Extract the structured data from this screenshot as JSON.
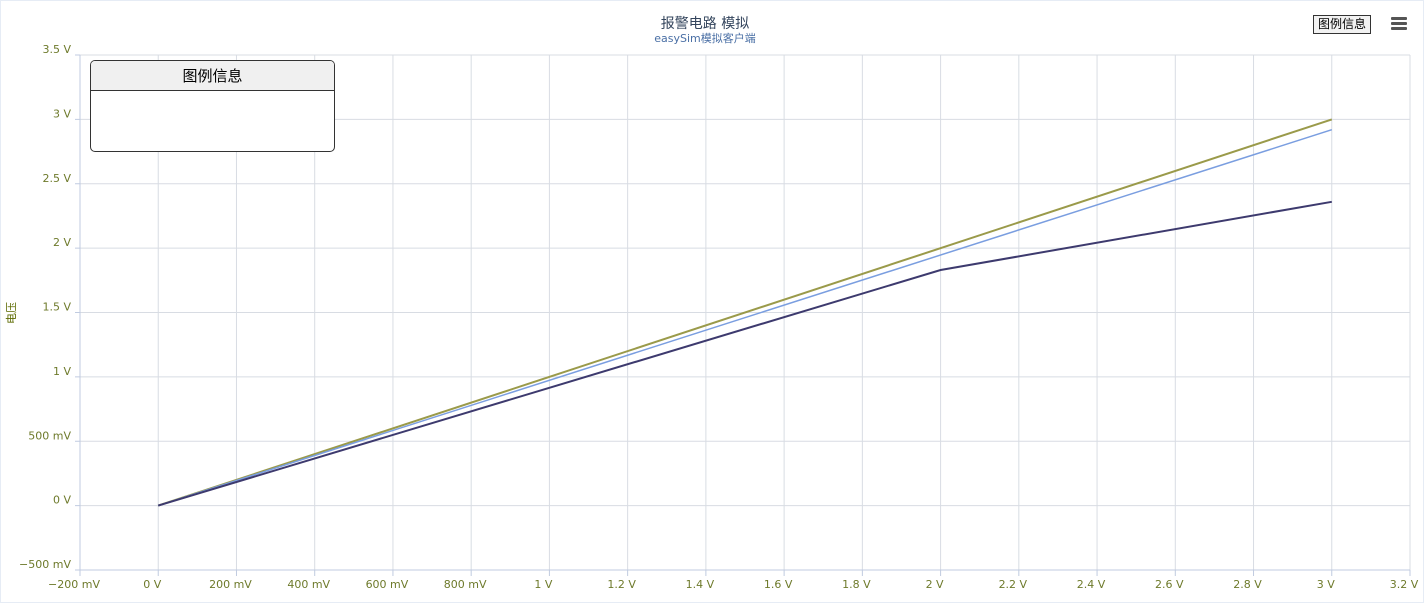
{
  "header": {
    "title": "报警电路 模拟",
    "subtitle": "easySim模拟客户端",
    "legend_button_label": "图例信息",
    "menu_icon": "hamburger-menu-icon"
  },
  "legend_box": {
    "title": "图例信息"
  },
  "colors": {
    "grid": "#d8dce3",
    "axis": "#c0cbe0",
    "tick_label": "#6e7a2b",
    "series": [
      "#9a9a4a",
      "#7a9ee0",
      "#3d3a6e"
    ]
  },
  "chart_data": {
    "type": "line",
    "title": "报警电路 模拟",
    "subtitle": "easySim模拟客户端",
    "xlabel": "",
    "ylabel": "电压",
    "xlim": [
      -0.2,
      3.2
    ],
    "ylim": [
      -0.5,
      3.5
    ],
    "grid": true,
    "x_ticks": [
      {
        "value": -0.2,
        "label": "−200 mV"
      },
      {
        "value": 0,
        "label": "0 V"
      },
      {
        "value": 0.2,
        "label": "200 mV"
      },
      {
        "value": 0.4,
        "label": "400 mV"
      },
      {
        "value": 0.6,
        "label": "600 mV"
      },
      {
        "value": 0.8,
        "label": "800 mV"
      },
      {
        "value": 1.0,
        "label": "1 V"
      },
      {
        "value": 1.2,
        "label": "1.2 V"
      },
      {
        "value": 1.4,
        "label": "1.4 V"
      },
      {
        "value": 1.6,
        "label": "1.6 V"
      },
      {
        "value": 1.8,
        "label": "1.8 V"
      },
      {
        "value": 2.0,
        "label": "2 V"
      },
      {
        "value": 2.2,
        "label": "2.2 V"
      },
      {
        "value": 2.4,
        "label": "2.4 V"
      },
      {
        "value": 2.6,
        "label": "2.6 V"
      },
      {
        "value": 2.8,
        "label": "2.8 V"
      },
      {
        "value": 3.0,
        "label": "3 V"
      },
      {
        "value": 3.2,
        "label": "3.2 V"
      }
    ],
    "y_ticks": [
      {
        "value": -0.5,
        "label": "−500 mV"
      },
      {
        "value": 0,
        "label": "0 V"
      },
      {
        "value": 0.5,
        "label": "500 mV"
      },
      {
        "value": 1.0,
        "label": "1 V"
      },
      {
        "value": 1.5,
        "label": "1.5 V"
      },
      {
        "value": 2.0,
        "label": "2 V"
      },
      {
        "value": 2.5,
        "label": "2.5 V"
      },
      {
        "value": 3.0,
        "label": "3 V"
      },
      {
        "value": 3.5,
        "label": "3.5 V"
      }
    ],
    "series": [
      {
        "color": "#9a9a4a",
        "x": [
          0,
          3.0
        ],
        "y": [
          0,
          3.0
        ]
      },
      {
        "color": "#7a9ee0",
        "x": [
          0,
          3.0
        ],
        "y": [
          0,
          2.92
        ]
      },
      {
        "color": "#3d3a6e",
        "x": [
          0,
          2.0,
          3.0
        ],
        "y": [
          0,
          1.83,
          2.36
        ]
      }
    ]
  }
}
